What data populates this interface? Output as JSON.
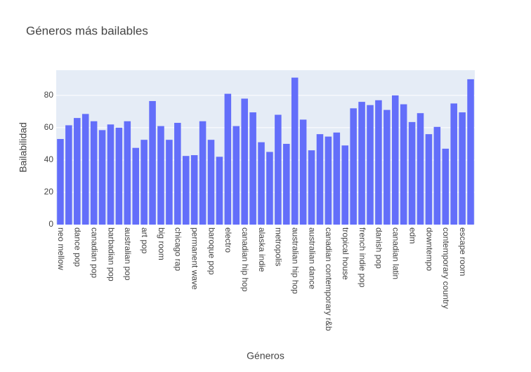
{
  "chart_data": {
    "type": "bar",
    "title": "Géneros más bailables",
    "x_label": "Géneros",
    "y_label": "Bailabilidad",
    "categories": [
      "neo mellow",
      null,
      "dance pop",
      null,
      "canadian pop",
      null,
      "barbadian pop",
      null,
      "australian pop",
      null,
      "art pop",
      null,
      "big room",
      null,
      "chicago rap",
      null,
      "permanent wave",
      null,
      "baroque pop",
      null,
      "electro",
      null,
      "canadian hip hop",
      null,
      "alaska indie",
      null,
      "metropolis",
      null,
      "australian hip hop",
      null,
      "australian dance",
      null,
      "canadian contemporary r&b",
      null,
      "tropical house",
      null,
      "french indie pop",
      null,
      "danish pop",
      null,
      "canadian latin",
      null,
      "edm",
      null,
      "downtempo",
      null,
      "contemporary country",
      null,
      "escape room",
      null
    ],
    "values": [
      53,
      61.5,
      66,
      68.5,
      64,
      58.5,
      62,
      60,
      64,
      47.5,
      52.5,
      76.5,
      61,
      52.5,
      63,
      42.5,
      43,
      64,
      52.5,
      42,
      81,
      61,
      78,
      69.5,
      51,
      45,
      68,
      50,
      91,
      65,
      46,
      56,
      54.5,
      57,
      49,
      72,
      76,
      74,
      77,
      71,
      80,
      74.5,
      63.5,
      69,
      56,
      60.5,
      47,
      75,
      69.5,
      90
    ],
    "color": "#636efa",
    "ylim": [
      0,
      95.6
    ],
    "yticks": [
      0,
      20,
      40,
      60,
      80
    ],
    "grid": true
  }
}
